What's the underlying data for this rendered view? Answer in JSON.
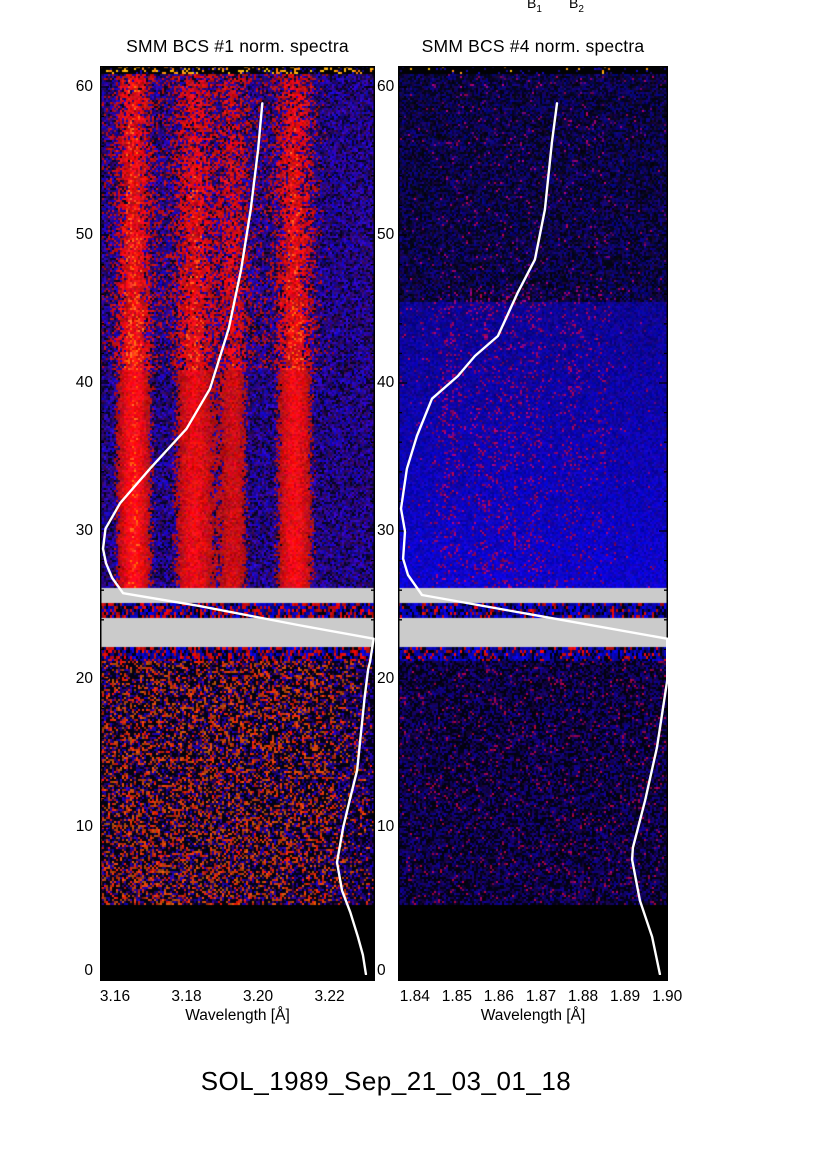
{
  "page": {
    "background": "#ffffff",
    "footer_label": "SOL_1989_Sep_21_03_01_18"
  },
  "top_labels": {
    "b1_base": "B",
    "b1_sub": "1",
    "b2_base": "B",
    "b2_sub": "2"
  },
  "colors": {
    "gap_gray": "#cbcbcb",
    "overlay_curve": "#ffffff",
    "frame": "#000000",
    "hot": "#ff2a00",
    "cold": "#1414c8"
  },
  "chart_data": [
    {
      "id": "bcs1",
      "type": "heatmap",
      "title": "SMM BCS #1 norm. spectra",
      "xlabel": "Wavelength [Å]",
      "xlim": [
        3.1558,
        3.2327
      ],
      "ylim": [
        0,
        61.4
      ],
      "x_ticks": [
        {
          "label": "3.16",
          "value": 3.16
        },
        {
          "label": "3.18",
          "value": 3.18
        },
        {
          "label": "3.20",
          "value": 3.2
        },
        {
          "label": "3.22",
          "value": 3.22
        }
      ],
      "y_ticks": [
        0,
        10,
        20,
        30,
        40,
        50,
        60
      ],
      "colormap": "black-blue-red normalized intensity",
      "emission_bands": [
        {
          "wavelength": 3.165,
          "strength": 1.0
        },
        {
          "wavelength": 3.182,
          "strength": 0.8
        },
        {
          "wavelength": 3.193,
          "strength": 0.62
        },
        {
          "wavelength": 3.21,
          "strength": 0.9
        }
      ],
      "data_gaps_y_units": [
        [
          25.1,
          26.1
        ],
        [
          22.2,
          24.1
        ]
      ],
      "no_data_below_y": 4.7,
      "noise_style": {
        "lower_red_density": 0.34,
        "strip_red_fraction": 0.33,
        "upper": "strong-red-bands"
      },
      "overlay_lightcurve_frac": [
        [
          0.59,
          0.041
        ],
        [
          0.575,
          0.092
        ],
        [
          0.548,
          0.158
        ],
        [
          0.513,
          0.224
        ],
        [
          0.468,
          0.289
        ],
        [
          0.4,
          0.355
        ],
        [
          0.315,
          0.399
        ],
        [
          0.182,
          0.443
        ],
        [
          0.073,
          0.481
        ],
        [
          0.02,
          0.509
        ],
        [
          0.011,
          0.531
        ],
        [
          0.022,
          0.547
        ],
        [
          0.044,
          0.563
        ],
        [
          0.084,
          0.58
        ],
        [
          0.36,
          0.594
        ],
        [
          0.72,
          0.615
        ],
        [
          0.995,
          0.63
        ],
        [
          0.982,
          0.655
        ],
        [
          0.975,
          0.664
        ],
        [
          0.962,
          0.695
        ],
        [
          0.935,
          0.775
        ],
        [
          0.91,
          0.805
        ],
        [
          0.884,
          0.838
        ],
        [
          0.862,
          0.876
        ],
        [
          0.88,
          0.907
        ],
        [
          0.91,
          0.931
        ],
        [
          0.938,
          0.958
        ],
        [
          0.956,
          0.978
        ],
        [
          0.967,
          0.999
        ]
      ]
    },
    {
      "id": "bcs4",
      "type": "heatmap",
      "title": "SMM BCS #4 norm. spectra",
      "xlabel": "Wavelength [Å]",
      "xlim": [
        1.836,
        1.9002
      ],
      "ylim": [
        0,
        61.4
      ],
      "x_ticks": [
        {
          "label": "1.84",
          "value": 1.84
        },
        {
          "label": "1.85",
          "value": 1.85
        },
        {
          "label": "1.86",
          "value": 1.86
        },
        {
          "label": "1.87",
          "value": 1.87
        },
        {
          "label": "1.88",
          "value": 1.88
        },
        {
          "label": "1.89",
          "value": 1.89
        },
        {
          "label": "1.90",
          "value": 1.9
        }
      ],
      "y_ticks": [
        0,
        10,
        20,
        30,
        40,
        50,
        60
      ],
      "colormap": "black-blue-red normalized intensity",
      "emission_bands": [
        {
          "wavelength": 1.848,
          "strength": 0.38
        },
        {
          "wavelength": 1.856,
          "strength": 0.32
        },
        {
          "wavelength": 1.862,
          "strength": 0.3
        },
        {
          "wavelength": 1.868,
          "strength": 0.3
        },
        {
          "wavelength": 1.877,
          "strength": 0.24
        },
        {
          "wavelength": 1.884,
          "strength": 0.18
        }
      ],
      "data_gaps_y_units": [
        [
          25.1,
          26.1
        ],
        [
          22.2,
          24.1
        ]
      ],
      "no_data_below_y": 4.7,
      "noise_style": {
        "lower_red_density": 0.055,
        "strip_red_fraction": 0.15,
        "upper": "faint-blue-brightening"
      },
      "overlay_lightcurve_frac": [
        [
          0.589,
          0.041
        ],
        [
          0.57,
          0.084
        ],
        [
          0.544,
          0.158
        ],
        [
          0.507,
          0.213
        ],
        [
          0.444,
          0.249
        ],
        [
          0.37,
          0.297
        ],
        [
          0.285,
          0.319
        ],
        [
          0.222,
          0.341
        ],
        [
          0.126,
          0.366
        ],
        [
          0.07,
          0.407
        ],
        [
          0.033,
          0.443
        ],
        [
          0.011,
          0.487
        ],
        [
          0.026,
          0.512
        ],
        [
          0.019,
          0.542
        ],
        [
          0.037,
          0.56
        ],
        [
          0.089,
          0.582
        ],
        [
          0.997,
          0.63
        ],
        [
          0.997,
          0.644
        ],
        [
          0.997,
          0.676
        ],
        [
          0.989,
          0.692
        ],
        [
          0.959,
          0.75
        ],
        [
          0.915,
          0.808
        ],
        [
          0.87,
          0.86
        ],
        [
          0.867,
          0.873
        ],
        [
          0.896,
          0.918
        ],
        [
          0.941,
          0.958
        ],
        [
          0.97,
          0.999
        ]
      ]
    }
  ]
}
